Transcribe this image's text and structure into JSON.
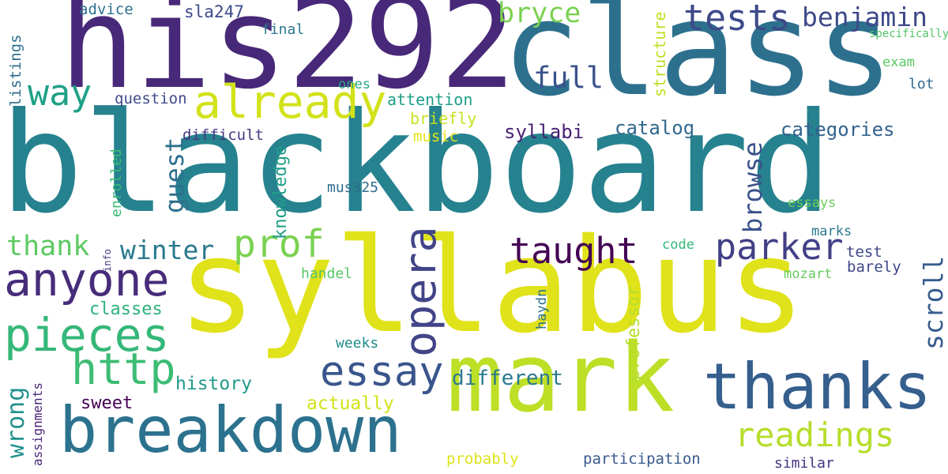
{
  "background": "#ffffff",
  "words": [
    {
      "text": "blackboard",
      "weight": 100,
      "color": "#26828e"
    },
    {
      "text": "syllabus",
      "weight": 95,
      "color": "#e0e21a"
    },
    {
      "text": "class",
      "weight": 80,
      "color": "#2d708e"
    },
    {
      "text": "his292",
      "weight": 78,
      "color": "#482878"
    },
    {
      "text": "mark",
      "weight": 60,
      "color": "#bddf26"
    },
    {
      "text": "breakdown",
      "weight": 45,
      "color": "#2c728e"
    },
    {
      "text": "thanks",
      "weight": 44,
      "color": "#355f8d"
    },
    {
      "text": "anyone",
      "weight": 30,
      "color": "#472c7a"
    },
    {
      "text": "already",
      "weight": 28,
      "color": "#d2e21b"
    },
    {
      "text": "pieces",
      "weight": 28,
      "color": "#35b779"
    },
    {
      "text": "opera",
      "weight": 26,
      "color": "#414487"
    },
    {
      "text": "http",
      "weight": 26,
      "color": "#3dbc74"
    },
    {
      "text": "essay",
      "weight": 26,
      "color": "#39558c"
    },
    {
      "text": "tests",
      "weight": 22,
      "color": "#3e4a89"
    },
    {
      "text": "way",
      "weight": 22,
      "color": "#1fa187"
    },
    {
      "text": "prof",
      "weight": 22,
      "color": "#7ad151"
    },
    {
      "text": "parker",
      "weight": 21,
      "color": "#424086"
    },
    {
      "text": "taught",
      "weight": 21,
      "color": "#440154"
    },
    {
      "text": "readings",
      "weight": 20,
      "color": "#b5de2b"
    },
    {
      "text": "full",
      "weight": 18,
      "color": "#3b528b"
    },
    {
      "text": "bryce",
      "weight": 17,
      "color": "#7ad151"
    },
    {
      "text": "benjamin",
      "weight": 17,
      "color": "#3e4989"
    },
    {
      "text": "guest",
      "weight": 16,
      "color": "#2e6f8e"
    },
    {
      "text": "browse",
      "weight": 16,
      "color": "#3b528b"
    },
    {
      "text": "winter",
      "weight": 16,
      "color": "#2a788e"
    },
    {
      "text": "thank",
      "weight": 16,
      "color": "#5ec962"
    },
    {
      "text": "scroll",
      "weight": 16,
      "color": "#365c8d"
    },
    {
      "text": "wrong",
      "weight": 15,
      "color": "#21918c"
    },
    {
      "text": "different",
      "weight": 13,
      "color": "#2a788e"
    },
    {
      "text": "catalog",
      "weight": 12,
      "color": "#31688e"
    },
    {
      "text": "categories",
      "weight": 12,
      "color": "#33638d"
    },
    {
      "text": "syllabi",
      "weight": 12,
      "color": "#482173"
    },
    {
      "text": "history",
      "weight": 12,
      "color": "#1f9a8a"
    },
    {
      "text": "classes",
      "weight": 12,
      "color": "#2db27d"
    },
    {
      "text": "actually",
      "weight": 11,
      "color": "#d2e21b"
    },
    {
      "text": "professor",
      "weight": 11,
      "color": "#b5de2b"
    },
    {
      "text": "knowledge",
      "weight": 11,
      "color": "#1f9e89"
    },
    {
      "text": "sweet",
      "weight": 11,
      "color": "#440154"
    },
    {
      "text": "sla247",
      "weight": 11,
      "color": "#3e4989"
    },
    {
      "text": "attention",
      "weight": 10,
      "color": "#1f9e89"
    },
    {
      "text": "structure",
      "weight": 10,
      "color": "#c2df23"
    },
    {
      "text": "briefly",
      "weight": 10,
      "color": "#c8e020"
    },
    {
      "text": "music",
      "weight": 10,
      "color": "#e7e419"
    },
    {
      "text": "question",
      "weight": 10,
      "color": "#3e4a89"
    },
    {
      "text": "difficult",
      "weight": 10,
      "color": "#443983"
    },
    {
      "text": "advice",
      "weight": 10,
      "color": "#2c728e"
    },
    {
      "text": "listings",
      "weight": 10,
      "color": "#2e6e8e"
    },
    {
      "text": "participation",
      "weight": 10,
      "color": "#38598c"
    },
    {
      "text": "test",
      "weight": 10,
      "color": "#3f4788"
    },
    {
      "text": "barely",
      "weight": 10,
      "color": "#3f4889"
    },
    {
      "text": "probably",
      "weight": 10,
      "color": "#dde318"
    },
    {
      "text": "similar",
      "weight": 9,
      "color": "#46327e"
    },
    {
      "text": "weeks",
      "weight": 9,
      "color": "#228c8d"
    },
    {
      "text": "enrolled",
      "weight": 9,
      "color": "#3aba76"
    },
    {
      "text": "lot",
      "weight": 9,
      "color": "#31688e"
    },
    {
      "text": "exam",
      "weight": 9,
      "color": "#5cc863"
    },
    {
      "text": "mozart",
      "weight": 9,
      "color": "#65cb5e"
    },
    {
      "text": "marks",
      "weight": 9,
      "color": "#2a788e"
    },
    {
      "text": "essays",
      "weight": 9,
      "color": "#6ccd5a"
    },
    {
      "text": "code",
      "weight": 9,
      "color": "#35b779"
    },
    {
      "text": "ones",
      "weight": 9,
      "color": "#22a785"
    },
    {
      "text": "final",
      "weight": 9,
      "color": "#2a768e"
    },
    {
      "text": "mus325",
      "weight": 9,
      "color": "#2f6c8e"
    },
    {
      "text": "handel",
      "weight": 9,
      "color": "#56c667"
    },
    {
      "text": "haydn",
      "weight": 9,
      "color": "#2d718e"
    },
    {
      "text": "assignments",
      "weight": 8,
      "color": "#482475"
    },
    {
      "text": "specifically",
      "weight": 6,
      "color": "#52c569"
    },
    {
      "text": "info",
      "weight": 5,
      "color": "#453781"
    }
  ]
}
